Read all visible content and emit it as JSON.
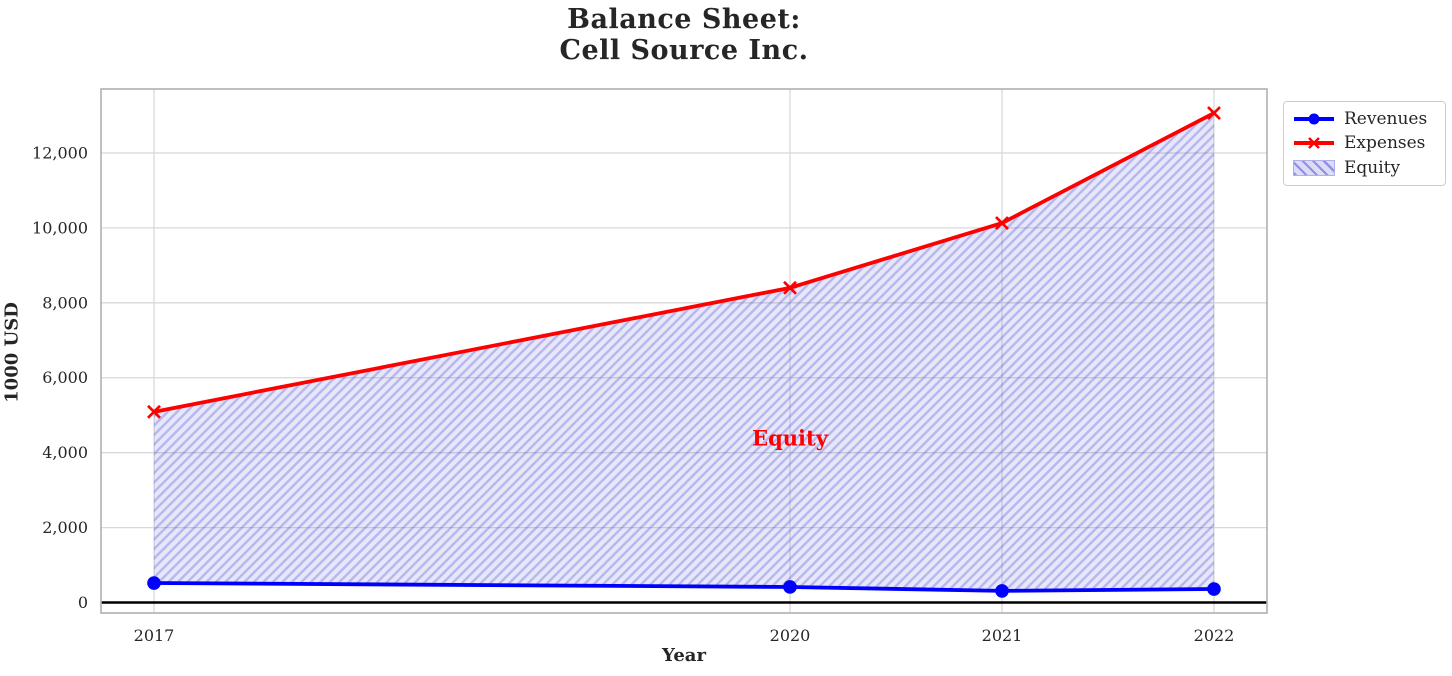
{
  "header": {
    "title_line1": "Balance Sheet:",
    "title_line2": "Cell Source Inc."
  },
  "chart_data": {
    "type": "line",
    "title": "Balance Sheet:\nCell Source Inc.",
    "xlabel": "Year",
    "ylabel": "1000 USD",
    "x": [
      2017,
      2020,
      2021,
      2022
    ],
    "series": [
      {
        "name": "Revenues",
        "color": "#0000ff",
        "marker": "circle",
        "values": [
          520,
          415,
          310,
          360
        ]
      },
      {
        "name": "Expenses",
        "color": "#ff0000",
        "marker": "x",
        "values": [
          5090,
          8400,
          10130,
          13065
        ]
      }
    ],
    "area": {
      "name": "Equity",
      "between": [
        "Expenses",
        "Revenues"
      ],
      "face_color": "#6969e0",
      "face_opacity": 0.16,
      "hatch_color": "#5555dc",
      "hatch_opacity": 0.32,
      "hatch_style": "///"
    },
    "annotation": {
      "text": "Equity",
      "x": 2020,
      "y": 4400,
      "color": "#ff0000"
    },
    "xlim": [
      2016.75,
      2022.25
    ],
    "ylim": [
      -280,
      13708
    ],
    "xticks": [
      2017,
      2020,
      2021,
      2022
    ],
    "xtick_labels": [
      "2017",
      "2020",
      "2021",
      "2022"
    ],
    "yticks": [
      0,
      2000,
      4000,
      6000,
      8000,
      10000,
      12000
    ],
    "ytick_labels": [
      "0",
      "2,000",
      "4,000",
      "6,000",
      "8,000",
      "10,000",
      "12,000"
    ],
    "grid": true,
    "grid_color": "#d8d8d8",
    "spine_color": "#b0b0b0",
    "zero_line_color": "#000000",
    "tick_label_color": "#262626",
    "legend_position": "upper-right-outside"
  },
  "legend": {
    "items": [
      {
        "label": "Revenues",
        "color": "#0000ff",
        "swatch": "line-circle"
      },
      {
        "label": "Expenses",
        "color": "#ff0000",
        "swatch": "line-x"
      },
      {
        "label": "Equity",
        "color": "#dcdcf5",
        "swatch": "hatched-patch"
      }
    ]
  }
}
